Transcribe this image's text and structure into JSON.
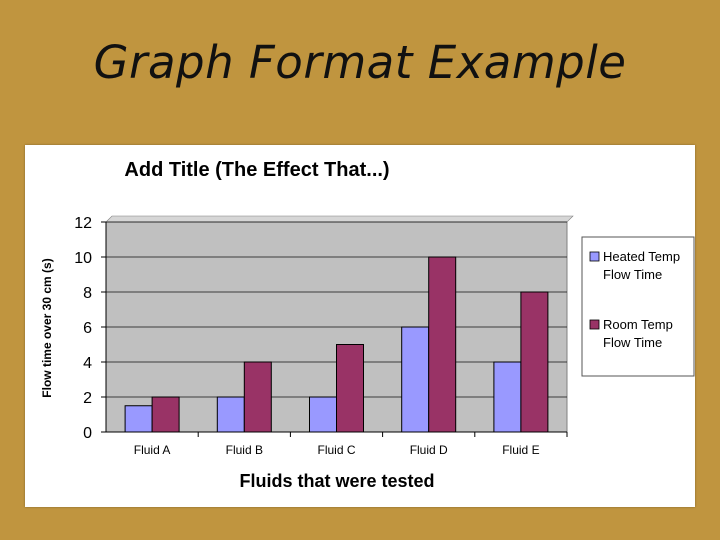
{
  "slide": {
    "title": "Graph Format Example"
  },
  "colors": {
    "background": "#c0953f",
    "plot_area": "#c0c0c0",
    "heated": "#9999ff",
    "room": "#993366"
  },
  "chart_data": {
    "type": "bar",
    "title": "Add Title (The Effect That...)",
    "xlabel": "Fluids that were tested",
    "ylabel": "Flow time over 30 cm (s)",
    "categories": [
      "Fluid A",
      "Fluid B",
      "Fluid C",
      "Fluid D",
      "Fluid E"
    ],
    "series": [
      {
        "name": "Heated Temp Flow Time",
        "legend_lines": [
          "Heated Temp",
          "Flow Time"
        ],
        "values": [
          1.5,
          2,
          2,
          6,
          4
        ]
      },
      {
        "name": "Room Temp Flow Time",
        "legend_lines": [
          "Room Temp",
          "Flow Time"
        ],
        "values": [
          2,
          4,
          5,
          10,
          8
        ]
      }
    ],
    "ylim": [
      0,
      12
    ],
    "yticks": [
      0,
      2,
      4,
      6,
      8,
      10,
      12
    ],
    "grid": true,
    "legend": "right"
  }
}
